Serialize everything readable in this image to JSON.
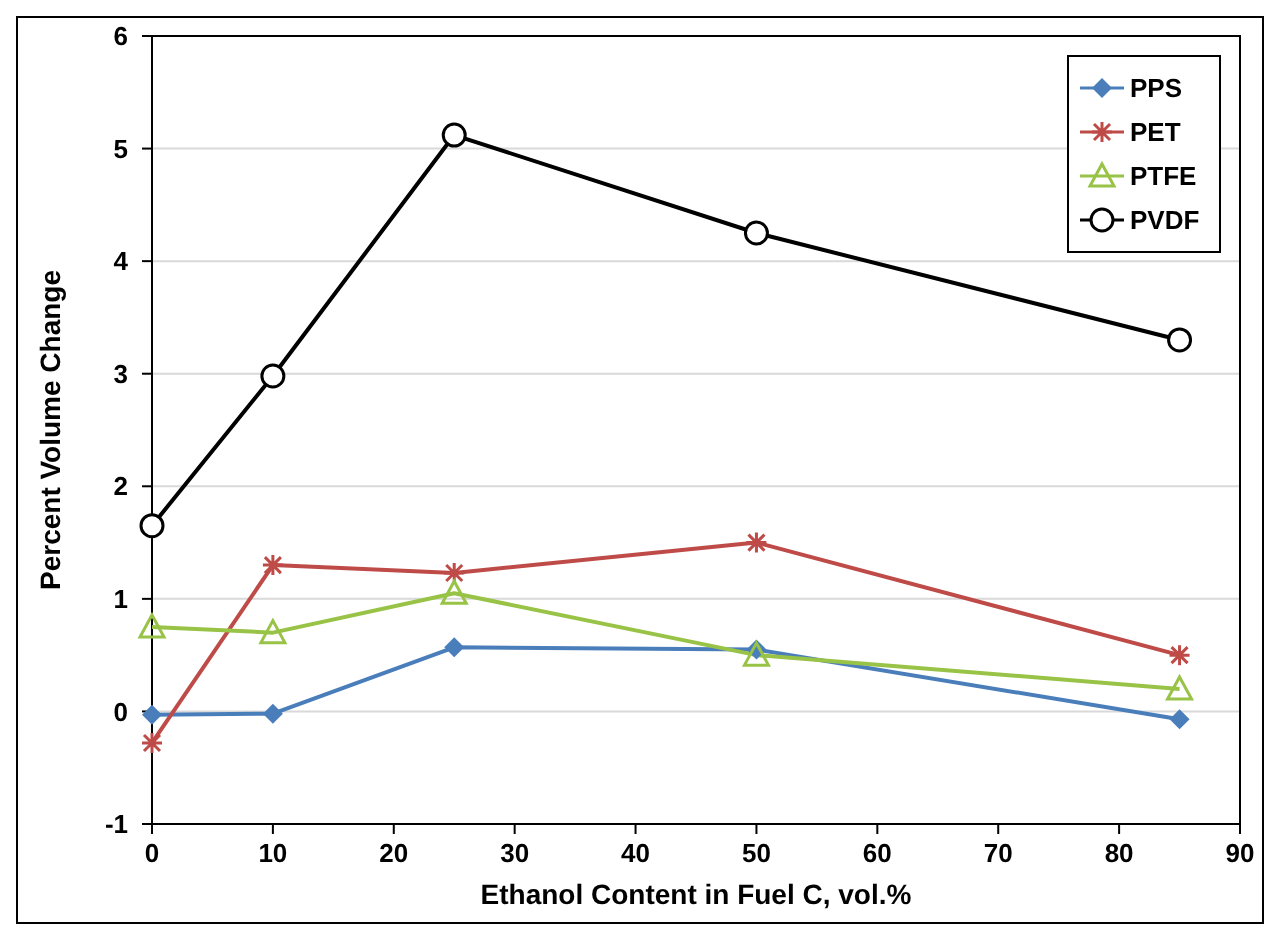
{
  "chart_data": {
    "type": "line",
    "xlabel": "Ethanol Content in Fuel C, vol.%",
    "ylabel": "Percent Volume Change",
    "x": [
      0,
      10,
      25,
      50,
      85
    ],
    "xlim": [
      0,
      90
    ],
    "xticks": [
      0,
      10,
      20,
      30,
      40,
      50,
      60,
      70,
      80,
      90
    ],
    "ylim": [
      -1,
      6
    ],
    "yticks": [
      -1,
      0,
      1,
      2,
      3,
      4,
      5,
      6
    ],
    "grid": "y",
    "legend": "top right",
    "line_style": "solid",
    "series": [
      {
        "name": "PPS",
        "color": "#4a7ebb",
        "marker": "diamond",
        "values": [
          -0.03,
          -0.02,
          0.57,
          0.55,
          -0.07
        ]
      },
      {
        "name": "PET",
        "color": "#be4b48",
        "marker": "cross",
        "values": [
          -0.28,
          1.3,
          1.23,
          1.5,
          0.5
        ]
      },
      {
        "name": "PTFE",
        "color": "#98c346",
        "marker": "triangle",
        "values": [
          0.75,
          0.7,
          1.05,
          0.5,
          0.2
        ]
      },
      {
        "name": "PVDF",
        "color": "#000000",
        "marker": "circle",
        "values": [
          1.65,
          2.98,
          5.12,
          4.25,
          3.3
        ]
      }
    ]
  }
}
